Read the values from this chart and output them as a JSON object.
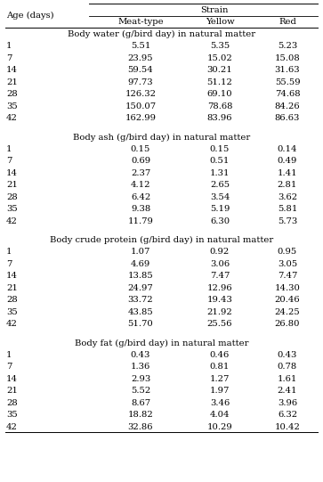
{
  "col_headers": [
    "Age (days)",
    "Meat-type",
    "Yellow",
    "Red"
  ],
  "strain_header": "Strain",
  "sections": [
    {
      "title": "Body water (g/bird day) in natural matter",
      "rows": [
        [
          "1",
          "5.51",
          "5.35",
          "5.23"
        ],
        [
          "7",
          "23.95",
          "15.02",
          "15.08"
        ],
        [
          "14",
          "59.54",
          "30.21",
          "31.63"
        ],
        [
          "21",
          "97.73",
          "51.12",
          "55.59"
        ],
        [
          "28",
          "126.32",
          "69.10",
          "74.68"
        ],
        [
          "35",
          "150.07",
          "78.68",
          "84.26"
        ],
        [
          "42",
          "162.99",
          "83.96",
          "86.63"
        ]
      ]
    },
    {
      "title": "Body ash (g/bird day) in natural matter",
      "rows": [
        [
          "1",
          "0.15",
          "0.15",
          "0.14"
        ],
        [
          "7",
          "0.69",
          "0.51",
          "0.49"
        ],
        [
          "14",
          "2.37",
          "1.31",
          "1.41"
        ],
        [
          "21",
          "4.12",
          "2.65",
          "2.81"
        ],
        [
          "28",
          "6.42",
          "3.54",
          "3.62"
        ],
        [
          "35",
          "9.38",
          "5.19",
          "5.81"
        ],
        [
          "42",
          "11.79",
          "6.30",
          "5.73"
        ]
      ]
    },
    {
      "title": "Body crude protein (g/bird day) in natural matter",
      "rows": [
        [
          "1",
          "1.07",
          "0.92",
          "0.95"
        ],
        [
          "7",
          "4.69",
          "3.06",
          "3.05"
        ],
        [
          "14",
          "13.85",
          "7.47",
          "7.47"
        ],
        [
          "21",
          "24.97",
          "12.96",
          "14.30"
        ],
        [
          "28",
          "33.72",
          "19.43",
          "20.46"
        ],
        [
          "35",
          "43.85",
          "21.92",
          "24.25"
        ],
        [
          "42",
          "51.70",
          "25.56",
          "26.80"
        ]
      ]
    },
    {
      "title": "Body fat (g/bird day) in natural matter",
      "rows": [
        [
          "1",
          "0.43",
          "0.46",
          "0.43"
        ],
        [
          "7",
          "1.36",
          "0.81",
          "0.78"
        ],
        [
          "14",
          "2.93",
          "1.27",
          "1.61"
        ],
        [
          "21",
          "5.52",
          "1.97",
          "2.41"
        ],
        [
          "28",
          "8.67",
          "3.46",
          "3.96"
        ],
        [
          "35",
          "18.82",
          "4.04",
          "6.32"
        ],
        [
          "42",
          "32.86",
          "10.29",
          "10.42"
        ]
      ]
    }
  ],
  "bg_color": "#ffffff",
  "text_color": "#000000",
  "font_size": 7.2
}
